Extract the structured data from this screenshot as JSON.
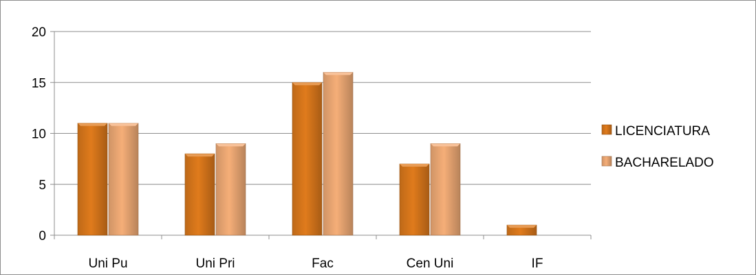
{
  "chart_data": {
    "type": "bar",
    "categories": [
      "Uni Pu",
      "Uni Pri",
      "Fac",
      "Cen Uni",
      "IF"
    ],
    "series": [
      {
        "name": "LICENCIATURA",
        "values": [
          11,
          8,
          15,
          7,
          1
        ],
        "color": "#e07b1c"
      },
      {
        "name": "BACHARELADO",
        "values": [
          11,
          9,
          16,
          9,
          0
        ],
        "color": "#f5ae78"
      }
    ],
    "yticks": [
      0,
      5,
      10,
      15,
      20
    ],
    "ylim": [
      0,
      20
    ],
    "grid": true,
    "legend": "right"
  }
}
